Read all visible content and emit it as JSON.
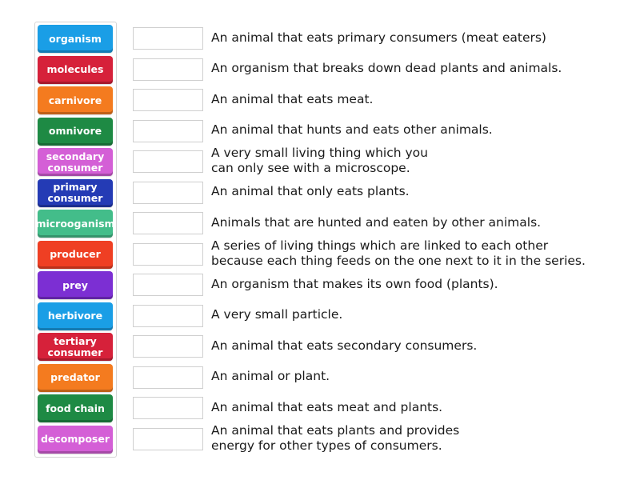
{
  "tiles": [
    {
      "label": "organism",
      "color": "#1a9ee6"
    },
    {
      "label": "molecules",
      "color": "#d6213a"
    },
    {
      "label": "carnivore",
      "color": "#f47b1f"
    },
    {
      "label": "omnivore",
      "color": "#1e8a44"
    },
    {
      "label": "secondary\nconsumer",
      "color": "#d45fd6"
    },
    {
      "label": "primary\nconsumer",
      "color": "#243bb5"
    },
    {
      "label": "microoganism",
      "color": "#43bd8a"
    },
    {
      "label": "producer",
      "color": "#ef3f23"
    },
    {
      "label": "prey",
      "color": "#7c2fd3"
    },
    {
      "label": "herbivore",
      "color": "#1a9ee6"
    },
    {
      "label": "tertiary\nconsumer",
      "color": "#d6213a"
    },
    {
      "label": "predator",
      "color": "#f47b1f"
    },
    {
      "label": "food chain",
      "color": "#1e8a44"
    },
    {
      "label": "decomposer",
      "color": "#d45fd6"
    }
  ],
  "descriptions": [
    "An animal that eats primary consumers (meat eaters)",
    "An organism that breaks down dead plants and animals.",
    "An animal that eats meat.",
    "An animal that hunts and eats other animals.",
    "A very small living thing which you\ncan only see with a microscope.",
    "An animal that only eats plants.",
    "Animals that are hunted and eaten by other animals.",
    "A series of living things which are linked to each other\nbecause each thing feeds on the one next to it in the series.",
    "An organism that makes its own food (plants).",
    "A very small particle.",
    "An animal that eats secondary consumers.",
    "An animal or plant.",
    "An animal that eats meat and plants.",
    "An animal that eats plants and provides\nenergy for other types of consumers."
  ]
}
